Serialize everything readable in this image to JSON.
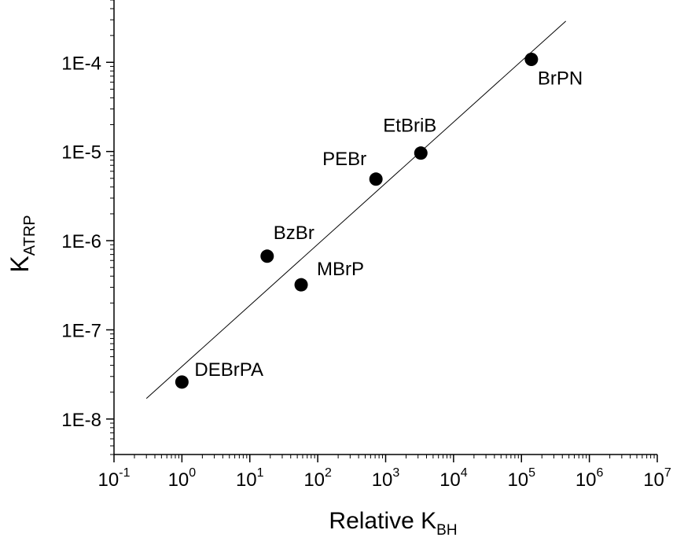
{
  "chart_data": {
    "type": "scatter",
    "xscale": "log",
    "yscale": "log",
    "xlim": [
      0.1,
      10000000
    ],
    "ylim": [
      4e-09,
      0.0005
    ],
    "xlabel": {
      "main": "Relative K",
      "sub": "BH"
    },
    "ylabel": {
      "main": "K",
      "sub": "ATRP"
    },
    "x_ticks": [
      {
        "value": 0.1,
        "base": "10",
        "exp": "-1"
      },
      {
        "value": 1,
        "base": "10",
        "exp": "0"
      },
      {
        "value": 10,
        "base": "10",
        "exp": "1"
      },
      {
        "value": 100,
        "base": "10",
        "exp": "2"
      },
      {
        "value": 1000,
        "base": "10",
        "exp": "3"
      },
      {
        "value": 10000,
        "base": "10",
        "exp": "4"
      },
      {
        "value": 100000,
        "base": "10",
        "exp": "5"
      },
      {
        "value": 1000000,
        "base": "10",
        "exp": "6"
      },
      {
        "value": 10000000,
        "base": "10",
        "exp": "7"
      }
    ],
    "y_ticks": [
      {
        "value": 1e-08,
        "label": "1E-8"
      },
      {
        "value": 1e-07,
        "label": "1E-7"
      },
      {
        "value": 1e-06,
        "label": "1E-6"
      },
      {
        "value": 1e-05,
        "label": "1E-5"
      },
      {
        "value": 0.0001,
        "label": "1E-4"
      }
    ],
    "points": [
      {
        "label": "DEBrPA",
        "x": 1,
        "y": 2.6e-08
      },
      {
        "label": "BzBr",
        "x": 18,
        "y": 6.7e-07
      },
      {
        "label": "MBrP",
        "x": 57,
        "y": 3.2e-07
      },
      {
        "label": "PEBr",
        "x": 720,
        "y": 4.9e-06
      },
      {
        "label": "EtBriB",
        "x": 3300,
        "y": 9.6e-06
      },
      {
        "label": "BrPN",
        "x": 140000,
        "y": 0.000108
      }
    ],
    "fit_line": {
      "x": [
        0.3,
        450000
      ],
      "y": [
        1.7e-08,
        0.00029
      ]
    },
    "grid": false,
    "legend": "none"
  }
}
